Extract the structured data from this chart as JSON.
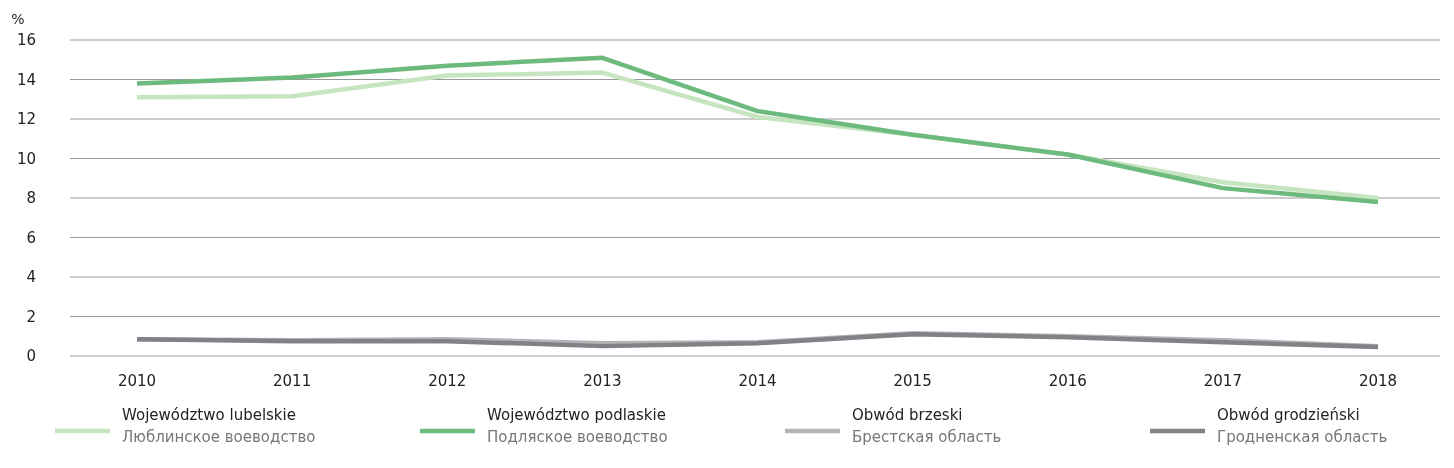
{
  "chart_data": {
    "type": "line",
    "ylabel": "%",
    "categories": [
      "2010",
      "2011",
      "2012",
      "2013",
      "2014",
      "2015",
      "2016",
      "2017",
      "2018"
    ],
    "series": [
      {
        "name": "Województwo lubelskie\nЛюблинское воеводство",
        "color": "#c6e4c0",
        "values": [
          13.1,
          13.15,
          14.2,
          14.35,
          12.1,
          11.2,
          10.2,
          8.8,
          8.0
        ]
      },
      {
        "name": "Województwo podlaskie\nПодляское воеводство",
        "color": "#6cba7e",
        "values": [
          13.8,
          14.1,
          14.7,
          15.1,
          12.4,
          11.2,
          10.2,
          8.5,
          7.8
        ]
      },
      {
        "name": "Obwód brzeski\nБрестская область",
        "color": "#b2b4b9",
        "values": [
          0.85,
          0.8,
          0.85,
          0.65,
          0.7,
          1.15,
          1.0,
          0.8,
          0.5
        ]
      },
      {
        "name": "Obwód grodzieński\nГродненская область",
        "color": "#808287",
        "values": [
          0.85,
          0.75,
          0.75,
          0.5,
          0.65,
          1.1,
          0.95,
          0.7,
          0.45
        ]
      }
    ],
    "ylim": [
      0,
      16
    ],
    "yticks": [
      0,
      2,
      4,
      6,
      8,
      10,
      12,
      14,
      16
    ],
    "grid": "y",
    "legend": "bottom",
    "line_style": "solid"
  }
}
